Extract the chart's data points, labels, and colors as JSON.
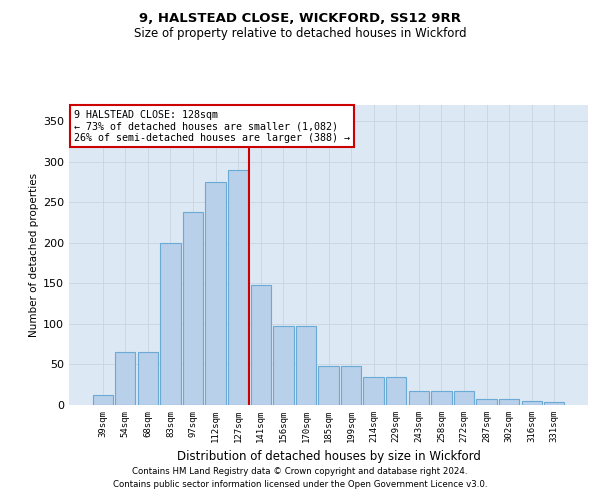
{
  "title1": "9, HALSTEAD CLOSE, WICKFORD, SS12 9RR",
  "title2": "Size of property relative to detached houses in Wickford",
  "xlabel": "Distribution of detached houses by size in Wickford",
  "ylabel": "Number of detached properties",
  "categories": [
    "39sqm",
    "54sqm",
    "68sqm",
    "83sqm",
    "97sqm",
    "112sqm",
    "127sqm",
    "141sqm",
    "156sqm",
    "170sqm",
    "185sqm",
    "199sqm",
    "214sqm",
    "229sqm",
    "243sqm",
    "258sqm",
    "272sqm",
    "287sqm",
    "302sqm",
    "316sqm",
    "331sqm"
  ],
  "bar_heights": [
    12,
    65,
    65,
    200,
    238,
    275,
    290,
    148,
    97,
    97,
    48,
    48,
    35,
    35,
    17,
    17,
    17,
    7,
    7,
    5,
    4
  ],
  "bar_color": "#b8d0ea",
  "bar_edge_color": "#6aaad4",
  "vline_index": 6.5,
  "vline_color": "#cc0000",
  "annotation_text": "9 HALSTEAD CLOSE: 128sqm\n← 73% of detached houses are smaller (1,082)\n26% of semi-detached houses are larger (388) →",
  "ylim": [
    0,
    370
  ],
  "yticks": [
    0,
    50,
    100,
    150,
    200,
    250,
    300,
    350
  ],
  "grid_color": "#c8d4e0",
  "bg_color": "#dce8f4",
  "footer1": "Contains HM Land Registry data © Crown copyright and database right 2024.",
  "footer2": "Contains public sector information licensed under the Open Government Licence v3.0."
}
